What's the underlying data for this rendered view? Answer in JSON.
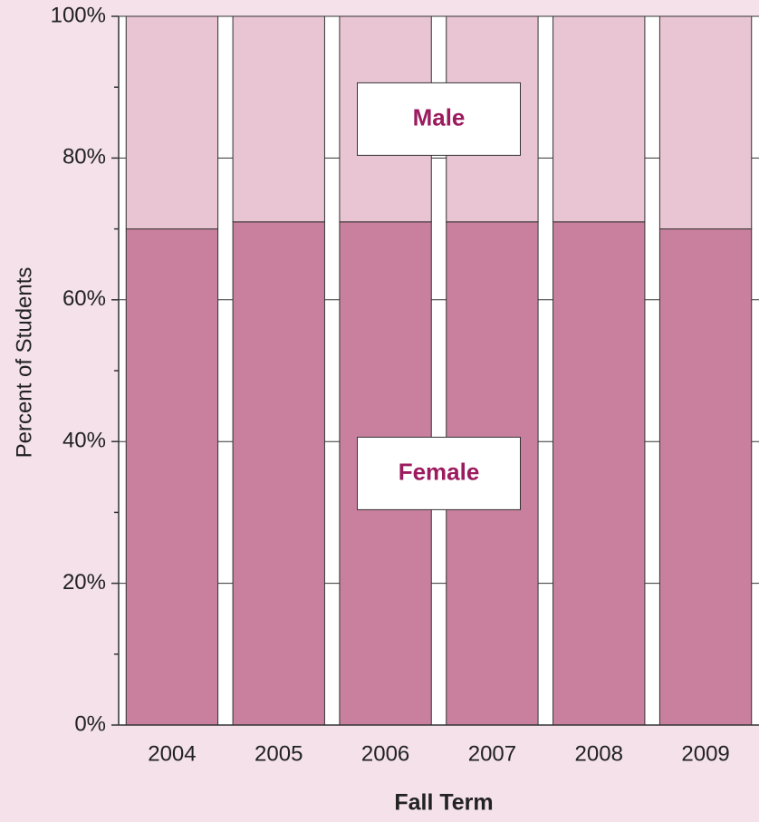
{
  "chart_data": {
    "type": "stacked_bar",
    "x_label": "Fall Term",
    "y_label": "Percent of Students",
    "categories": [
      "2004",
      "2005",
      "2006",
      "2007",
      "2008",
      "2009"
    ],
    "series": [
      {
        "name": "Female",
        "color": "#c9809e",
        "values": [
          70,
          71,
          71,
          71,
          71,
          70
        ]
      },
      {
        "name": "Male",
        "color": "#e9c5d4",
        "values": [
          30,
          29,
          29,
          29,
          29,
          30
        ]
      }
    ],
    "ylim": [
      0,
      100
    ],
    "yticks": [
      {
        "value": 0,
        "label": "0%"
      },
      {
        "value": 20,
        "label": "20%"
      },
      {
        "value": 40,
        "label": "40%"
      },
      {
        "value": 60,
        "label": "60%"
      },
      {
        "value": 80,
        "label": "80%"
      },
      {
        "value": 100,
        "label": "100%"
      }
    ],
    "minor_yticks": [
      10,
      30,
      50,
      70,
      90
    ],
    "grid": true,
    "label_color": "#9b1b5e"
  }
}
